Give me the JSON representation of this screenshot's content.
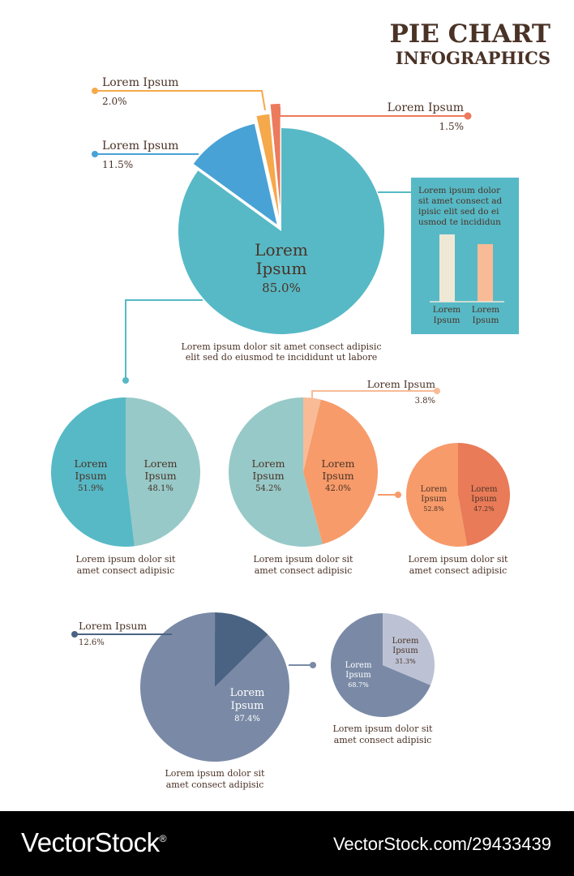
{
  "header": {
    "title_line1": "PIE CHART",
    "title_line2": "INFOGRAPHICS"
  },
  "colors": {
    "text": "#4a3226",
    "teal": "#57b9c6",
    "blue": "#49a2d6",
    "yellow_orange": "#f5a94b",
    "coral": "#ec7a5c",
    "light_teal": "#97c9c8",
    "peach": "#f79b6a",
    "light_peach": "#f8bb96",
    "dark_coral": "#e97b58",
    "slate": "#7a8aa6",
    "dark_slate": "#4b6382",
    "light_slate": "#bcc2d4",
    "cream": "#f0e8d7",
    "info_box": "#57b9c6"
  },
  "info_box": {
    "text": "Lorem ipsum dolor sit amet consect ad ipisic elit sed do ei usmod te incididun",
    "bar_labels": [
      "Lorem Ipsum",
      "Lorem Ipsum"
    ]
  },
  "chart_data": [
    {
      "type": "pie",
      "slices": [
        {
          "label": "Lorem Ipsum",
          "value": 85.0,
          "value_label": "85.0%",
          "color": "#57b9c6"
        },
        {
          "label": "Lorem Ipsum",
          "value": 11.5,
          "value_label": "11.5%",
          "color": "#49a2d6"
        },
        {
          "label": "Lorem Ipsum",
          "value": 2.0,
          "value_label": "2.0%",
          "color": "#f5a94b"
        },
        {
          "label": "Lorem Ipsum",
          "value": 1.5,
          "value_label": "1.5%",
          "color": "#ec7a5c"
        }
      ],
      "caption": "Lorem ipsum dolor sit amet consect adipisic elit sed do eiusmod te incididunt ut labore"
    },
    {
      "type": "pie",
      "slices": [
        {
          "label": "Lorem Ipsum",
          "value": 51.9,
          "value_label": "51.9%",
          "color": "#57b9c6"
        },
        {
          "label": "Lorem Ipsum",
          "value": 48.1,
          "value_label": "48.1%",
          "color": "#97c9c8"
        }
      ],
      "caption": "Lorem ipsum dolor sit amet consect adipisic"
    },
    {
      "type": "pie",
      "slices": [
        {
          "label": "Lorem Ipsum",
          "value": 54.2,
          "value_label": "54.2%",
          "color": "#97c9c8"
        },
        {
          "label": "Lorem Ipsum",
          "value": 42.0,
          "value_label": "42.0%",
          "color": "#f79b6a"
        },
        {
          "label": "Lorem Ipsum",
          "value": 3.8,
          "value_label": "3.8%",
          "color": "#f8bb96"
        }
      ],
      "caption": "Lorem ipsum dolor sit amet consect adipisic"
    },
    {
      "type": "pie",
      "slices": [
        {
          "label": "Lorem Ipsum",
          "value": 52.8,
          "value_label": "52.8%",
          "color": "#f79b6a"
        },
        {
          "label": "Lorem Ipsum",
          "value": 47.2,
          "value_label": "47.2%",
          "color": "#e97b58"
        }
      ],
      "caption": "Lorem ipsum dolor sit amet consect adipisic"
    },
    {
      "type": "pie",
      "slices": [
        {
          "label": "Lorem Ipsum",
          "value": 87.4,
          "value_label": "87.4%",
          "color": "#7a8aa6"
        },
        {
          "label": "Lorem Ipsum",
          "value": 12.6,
          "value_label": "12.6%",
          "color": "#4b6382"
        }
      ],
      "caption": "Lorem ipsum dolor sit amet consect adipisic"
    },
    {
      "type": "pie",
      "slices": [
        {
          "label": "Lorem Ipsum",
          "value": 68.7,
          "value_label": "68.7%",
          "color": "#7a8aa6"
        },
        {
          "label": "Lorem Ipsum",
          "value": 31.3,
          "value_label": "31.3%",
          "color": "#bcc2d4"
        }
      ],
      "caption": "Lorem ipsum dolor sit amet consect adipisic"
    }
  ],
  "watermark": {
    "brand": "VectorStock",
    "brand_mark": "®",
    "url": "VectorStock.com/29433439"
  }
}
